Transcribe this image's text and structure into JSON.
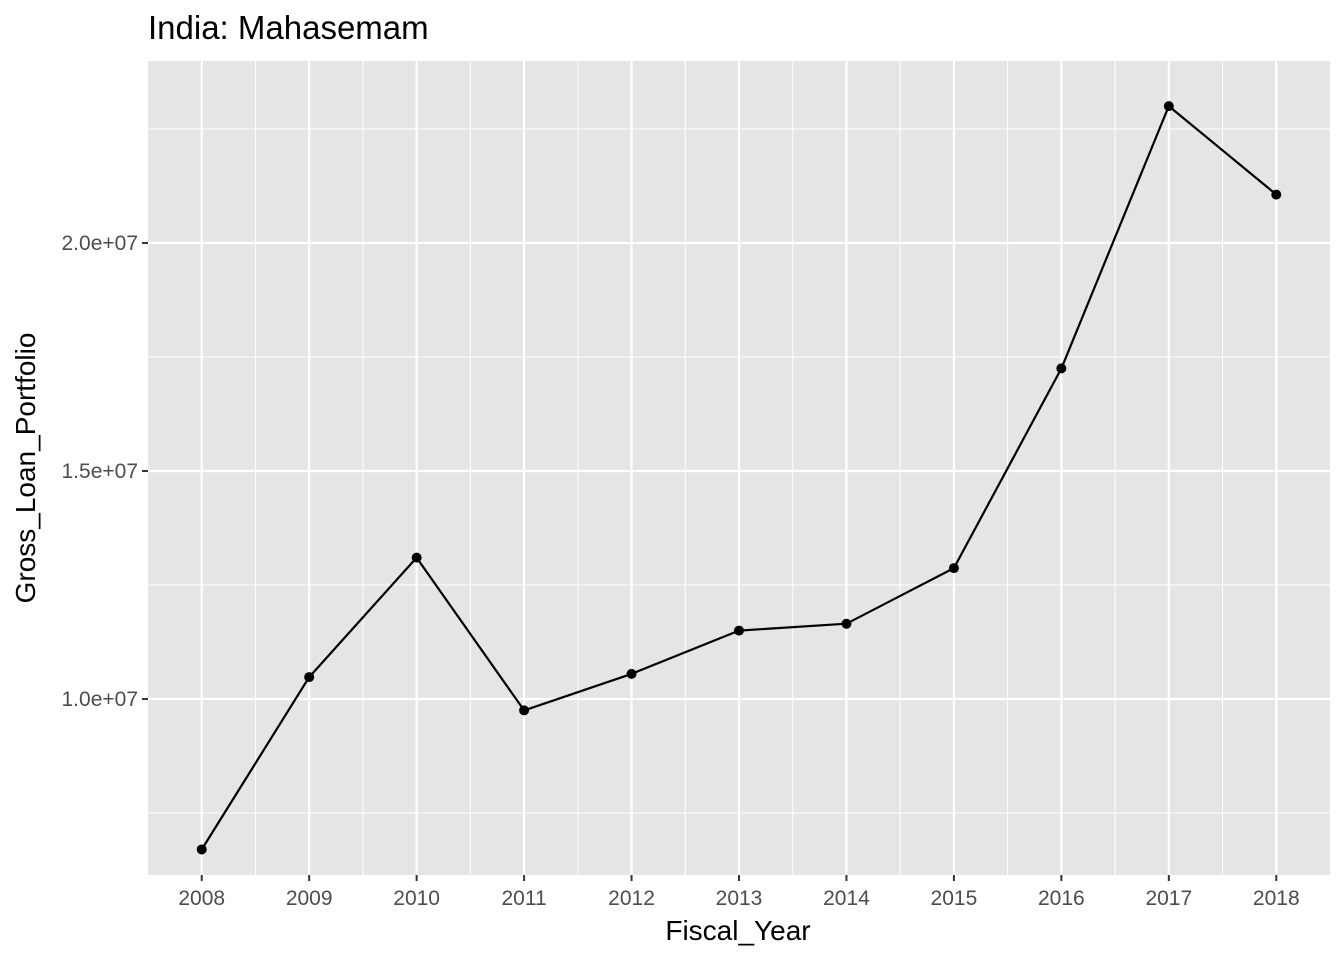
{
  "chart_data": {
    "type": "line",
    "title": "India:  Mahasemam",
    "xlabel": "Fiscal_Year",
    "ylabel": "Gross_Loan_Portfolio",
    "x": [
      2008,
      2009,
      2010,
      2011,
      2012,
      2013,
      2014,
      2015,
      2016,
      2017,
      2018
    ],
    "series": [
      {
        "values": [
          6700000,
          10480000,
          13100000,
          9750000,
          10550000,
          11500000,
          11650000,
          12870000,
          17250000,
          23000000,
          21060000
        ]
      }
    ],
    "xlim": [
      2007.5,
      2018.5
    ],
    "ylim": [
      6140000,
      23990000
    ],
    "y_ticks": [
      10000000,
      15000000,
      20000000
    ],
    "y_tick_labels": [
      "1.0e+07",
      "1.5e+07",
      "2.0e+07"
    ],
    "y_minor_ticks": [
      7500000,
      12500000,
      17500000,
      22500000
    ],
    "x_ticks": [
      2008,
      2009,
      2010,
      2011,
      2012,
      2013,
      2014,
      2015,
      2016,
      2017,
      2018
    ],
    "x_tick_labels": [
      "2008",
      "2009",
      "2010",
      "2011",
      "2012",
      "2013",
      "2014",
      "2015",
      "2016",
      "2017",
      "2018"
    ],
    "grid": true,
    "legend": "none",
    "colors": {
      "panel": "#e5e5e5",
      "grid": "#ffffff",
      "line": "#000000",
      "point": "#000000",
      "tick": "#333333",
      "tick_label": "#4d4d4d",
      "text": "#000000"
    }
  }
}
